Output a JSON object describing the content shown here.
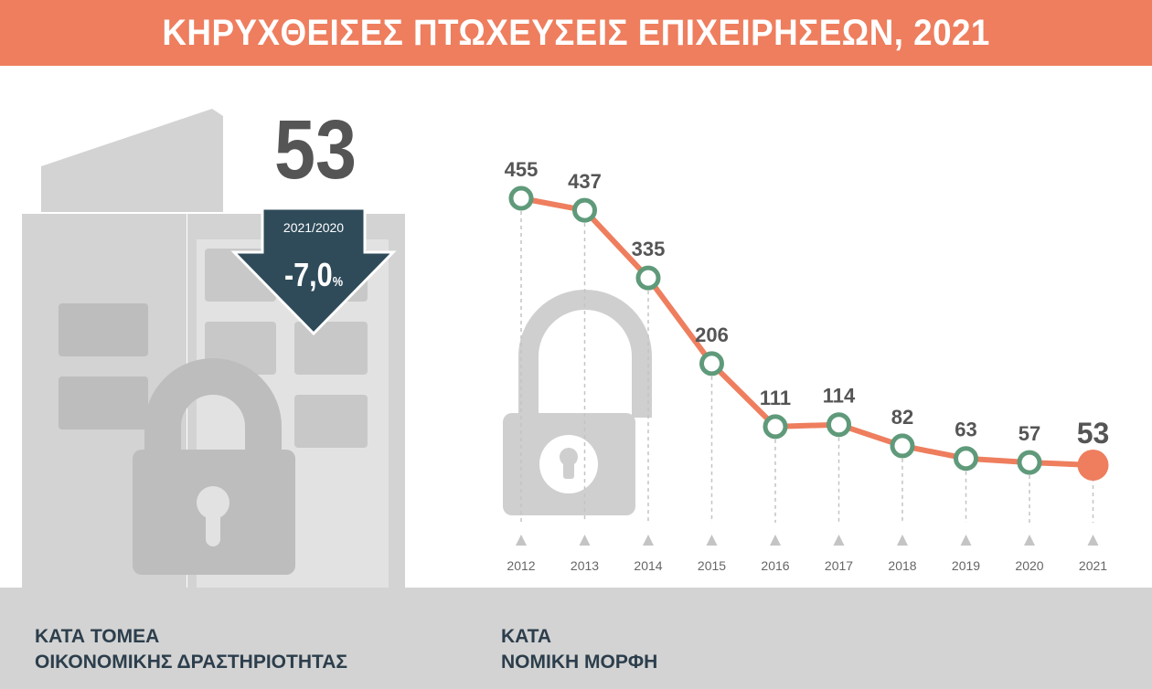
{
  "header": {
    "title": "ΚΗΡΥΧΘΕΙΣΕΣ ΠΤΩΧΕΥΣΕΙΣ ΕΠΙΧΕΙΡΗΣΕΩΝ, 2021"
  },
  "summary": {
    "value": "53",
    "period": "2021/2020",
    "change": "-7,0",
    "change_unit": "%"
  },
  "footer": {
    "left_line1": "ΚΑΤΑ ΤΟΜΕΑ",
    "left_line2": "ΟΙΚΟΝΟΜΙΚΗΣ ΔΡΑΣΤΗΡΙΟΤΗΤΑΣ",
    "right_line1": "ΚΑΤΑ",
    "right_line2": "ΝΟΜΙΚΗ ΜΟΡΦΗ"
  },
  "colors": {
    "banner": "#ee7e5e",
    "line": "#ee7e5e",
    "marker": "#5f9a7a",
    "arrow": "#2f4b5a",
    "illustration": "#d3d3d3",
    "footer": "#d3d3d3"
  },
  "icons": [
    "building-lock-illustration",
    "padlock-icon",
    "down-arrow-icon"
  ],
  "chart_data": {
    "type": "line",
    "x": [
      "2012",
      "2013",
      "2014",
      "2015",
      "2016",
      "2017",
      "2018",
      "2019",
      "2020",
      "2021"
    ],
    "values": [
      455,
      437,
      335,
      206,
      111,
      114,
      82,
      63,
      57,
      53
    ],
    "data_labels": [
      "455",
      "437",
      "335",
      "206",
      "111",
      "114",
      "82",
      "63",
      "57",
      "53"
    ],
    "ylim": [
      0,
      500
    ],
    "grid": false,
    "highlight_last": true
  }
}
